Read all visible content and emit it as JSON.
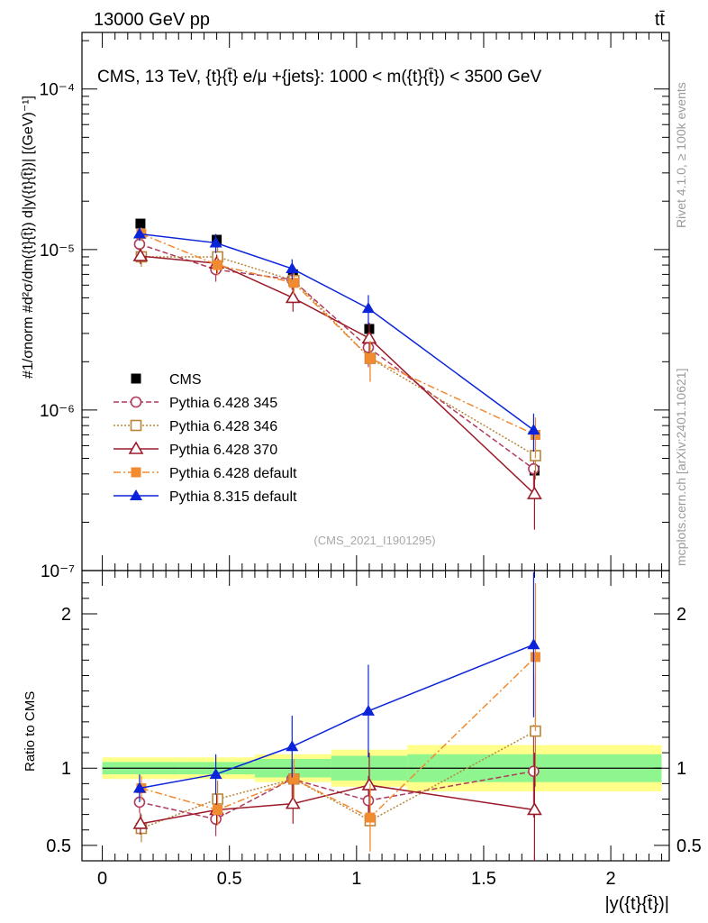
{
  "header": {
    "left": "13000 GeV pp",
    "right": "tt̄"
  },
  "side_labels": {
    "rivet": "Rivet 4.1.0, ≥ 100k events",
    "mcplots": "mcplots.cern.ch [arXiv:2401.10621]"
  },
  "chart_data": [
    {
      "type": "line",
      "title": "CMS, 13 TeV, {t}{t̄} e/μ +{jets}: 1000 < m({t}{t̄}) < 3500 GeV",
      "ylabel": "#1/σnorm #d²σ/dm({t}{t̄}) d|y({t}{t̄})| [(GeV)⁻¹]",
      "xlabel": "|y({t}{t̄})|",
      "yscale": "log",
      "xlim": [
        -0.08,
        2.23
      ],
      "ylim": [
        1e-07,
        0.000225
      ],
      "ytick_labels": [
        "10⁻⁷",
        "10⁻⁶",
        "10⁻⁵",
        "10⁻⁴"
      ],
      "watermark": "(CMS_2021_I1901295)",
      "legend_position": "lower-left",
      "x": [
        0.15,
        0.45,
        0.75,
        1.05,
        1.7
      ],
      "data_bins": [
        [
          0,
          0.3
        ],
        [
          0.3,
          0.6
        ],
        [
          0.6,
          0.9
        ],
        [
          0.9,
          1.2
        ],
        [
          1.2,
          2.2
        ]
      ],
      "series": [
        {
          "name": "CMS",
          "color": "#000000",
          "marker": "square-filled",
          "line": "none",
          "values": [
            1.45e-05,
            1.15e-05,
            7e-06,
            3.2e-06,
            4.2e-07
          ],
          "err": [
            5e-07,
            5e-07,
            6e-07,
            3e-07,
            3e-08
          ]
        },
        {
          "name": "Pythia 6.428 345",
          "color": "#b03a5c",
          "marker": "circle-open",
          "line": "dashed",
          "values": [
            1.08e-05,
            7.5e-06,
            6.5e-06,
            2.45e-06,
            4.3e-07
          ],
          "err": [
            1e-06,
            1.2e-06,
            9e-07,
            6e-07,
            1.1e-07
          ]
        },
        {
          "name": "Pythia 6.428 346",
          "color": "#b8863b",
          "marker": "square-open",
          "line": "dotted",
          "values": [
            9e-06,
            9e-06,
            6.4e-06,
            2.1e-06,
            5.2e-07
          ],
          "err": [
            1.2e-06,
            1.3e-06,
            9e-07,
            6e-07,
            1.5e-07
          ]
        },
        {
          "name": "Pythia 6.428 370",
          "color": "#9b1b2a",
          "marker": "triangle-open",
          "line": "solid",
          "values": [
            9.1e-06,
            8.2e-06,
            5e-06,
            2.8e-06,
            3e-07
          ],
          "err": [
            1e-06,
            1.1e-06,
            9e-07,
            7e-07,
            1.2e-07
          ]
        },
        {
          "name": "Pythia 6.428 default",
          "color": "#f28a30",
          "marker": "square-filled",
          "line": "dashdot",
          "values": [
            1.25e-05,
            8e-06,
            6.2e-06,
            2.1e-06,
            7e-07
          ],
          "err": [
            1.2e-06,
            1.1e-06,
            9e-07,
            6e-07,
            2e-07
          ]
        },
        {
          "name": "Pythia 8.315 default",
          "color": "#0b24d9",
          "marker": "triangle-filled",
          "line": "solid",
          "values": [
            1.25e-05,
            1.1e-05,
            7.6e-06,
            4.3e-06,
            7.5e-07
          ],
          "err": [
            1.2e-06,
            1.5e-06,
            1.1e-06,
            9e-07,
            2e-07
          ]
        }
      ]
    },
    {
      "type": "line",
      "title": "",
      "ylabel": "Ratio to CMS",
      "xlabel": "|y({t}{t̄})|",
      "xlim": [
        -0.08,
        2.23
      ],
      "ylim": [
        0.4,
        2.28
      ],
      "ytick_labels": [
        "0.5",
        "1",
        "2"
      ],
      "xtick_labels": [
        "0",
        "0.5",
        "1",
        "1.5",
        "2"
      ],
      "x": [
        0.15,
        0.45,
        0.75,
        1.05,
        1.7
      ],
      "bands": [
        {
          "x0": 0.0,
          "x1": 0.3,
          "inner": 0.04,
          "outer": 0.07
        },
        {
          "x0": 0.3,
          "x1": 0.6,
          "inner": 0.04,
          "outer": 0.07
        },
        {
          "x0": 0.6,
          "x1": 0.9,
          "inner": 0.06,
          "outer": 0.09
        },
        {
          "x0": 0.9,
          "x1": 1.2,
          "inner": 0.08,
          "outer": 0.12
        },
        {
          "x0": 1.2,
          "x1": 2.2,
          "inner": 0.09,
          "outer": 0.15
        }
      ],
      "series": [
        {
          "name": "Pythia 6.428 345",
          "color": "#b03a5c",
          "marker": "circle-open",
          "line": "dashed",
          "values": [
            0.78,
            0.67,
            0.93,
            0.79,
            0.98
          ],
          "err": [
            0.07,
            0.11,
            0.12,
            0.16,
            0.3
          ]
        },
        {
          "name": "Pythia 6.428 346",
          "color": "#b8863b",
          "marker": "square-open",
          "line": "dotted",
          "values": [
            0.61,
            0.8,
            0.93,
            0.66,
            1.24
          ],
          "err": [
            0.09,
            0.12,
            0.12,
            0.19,
            0.36
          ]
        },
        {
          "name": "Pythia 6.428 370",
          "color": "#9b1b2a",
          "marker": "triangle-open",
          "line": "solid",
          "values": [
            0.64,
            0.73,
            0.77,
            0.89,
            0.73
          ],
          "err": [
            0.07,
            0.1,
            0.13,
            0.21,
            0.37
          ]
        },
        {
          "name": "Pythia 6.428 default",
          "color": "#f28a30",
          "marker": "square-filled",
          "line": "dashdot",
          "values": [
            0.87,
            0.73,
            0.93,
            0.68,
            1.72
          ],
          "err": [
            0.08,
            0.1,
            0.13,
            0.22,
            0.48
          ]
        },
        {
          "name": "Pythia 8.315 default",
          "color": "#0b24d9",
          "marker": "triangle-filled",
          "line": "solid",
          "values": [
            0.87,
            0.96,
            1.14,
            1.37,
            1.8
          ],
          "err": [
            0.09,
            0.13,
            0.2,
            0.3,
            0.47
          ]
        }
      ]
    }
  ]
}
